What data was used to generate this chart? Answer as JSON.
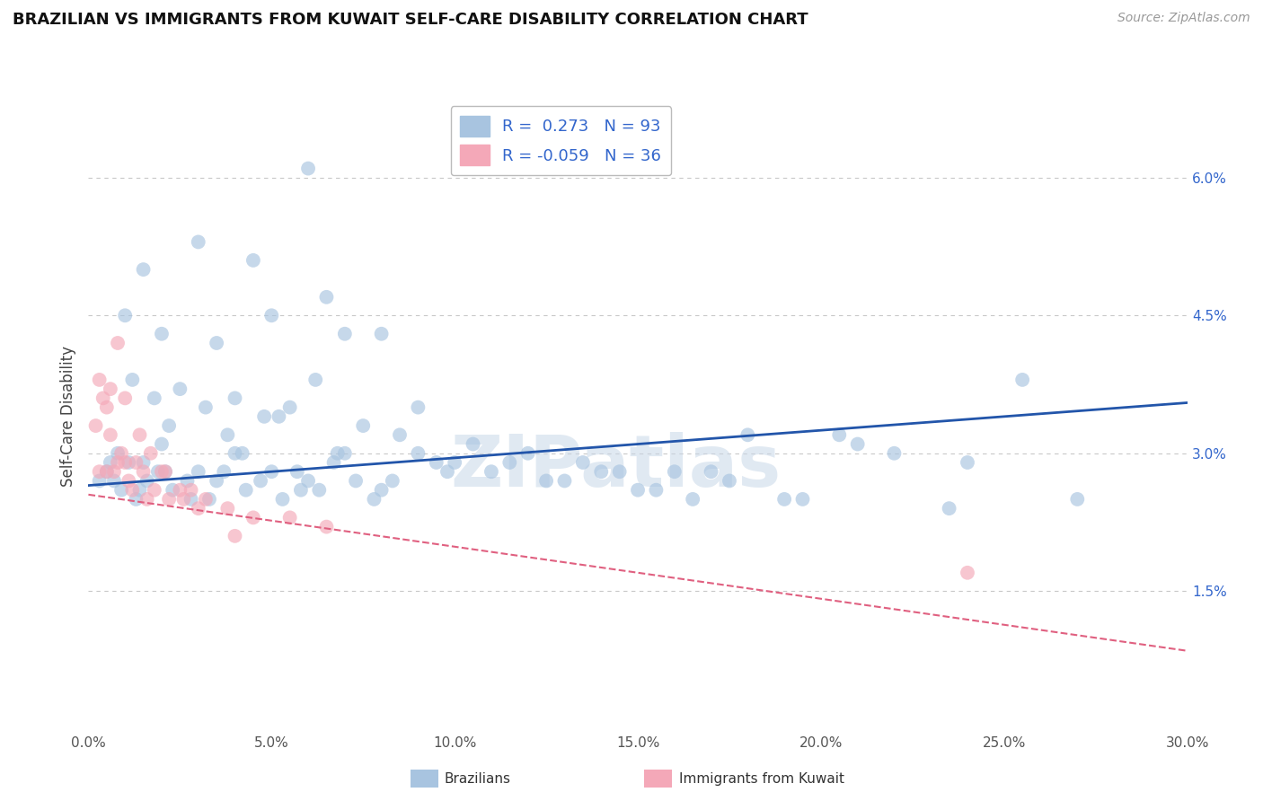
{
  "title": "BRAZILIAN VS IMMIGRANTS FROM KUWAIT SELF-CARE DISABILITY CORRELATION CHART",
  "source": "Source: ZipAtlas.com",
  "ylabel": "Self-Care Disability",
  "xlim": [
    0.0,
    30.0
  ],
  "ylim": [
    0.0,
    6.8
  ],
  "xtick_labels": [
    "0.0%",
    "5.0%",
    "10.0%",
    "15.0%",
    "20.0%",
    "25.0%",
    "30.0%"
  ],
  "xtick_values": [
    0,
    5,
    10,
    15,
    20,
    25,
    30
  ],
  "ytick_labels": [
    "1.5%",
    "3.0%",
    "4.5%",
    "6.0%"
  ],
  "ytick_values": [
    1.5,
    3.0,
    4.5,
    6.0
  ],
  "legend_r1": "R =  0.273",
  "legend_n1": "N = 93",
  "legend_r2": "R = -0.059",
  "legend_n2": "N = 36",
  "blue_color": "#A8C4E0",
  "pink_color": "#F4A8B8",
  "blue_line_color": "#2255AA",
  "pink_line_color": "#E06080",
  "watermark": "ZIPatlas",
  "background_color": "#FFFFFF",
  "grid_color": "#C8C8C8",
  "blue_line_x0": 0.0,
  "blue_line_y0": 2.65,
  "blue_line_x1": 30.0,
  "blue_line_y1": 3.55,
  "pink_line_x0": 0.0,
  "pink_line_y0": 2.55,
  "pink_line_x1": 30.0,
  "pink_line_y1": 0.85,
  "blue_scatter_x": [
    1.5,
    3.0,
    4.5,
    6.5,
    1.0,
    2.0,
    3.5,
    5.0,
    7.0,
    8.0,
    1.2,
    1.8,
    2.5,
    3.2,
    4.0,
    4.8,
    5.5,
    6.2,
    7.5,
    9.0,
    2.2,
    3.8,
    5.2,
    6.8,
    8.5,
    10.0,
    12.0,
    14.0,
    16.0,
    18.0,
    0.8,
    1.5,
    2.0,
    3.0,
    4.0,
    5.0,
    6.0,
    7.0,
    8.0,
    9.5,
    11.0,
    13.0,
    15.0,
    17.0,
    19.0,
    21.0,
    23.5,
    27.0,
    0.5,
    0.7,
    0.9,
    1.1,
    1.3,
    1.6,
    1.9,
    2.3,
    2.7,
    3.3,
    3.7,
    4.3,
    4.7,
    5.3,
    5.7,
    6.3,
    6.7,
    7.3,
    7.8,
    8.3,
    9.0,
    9.8,
    10.5,
    11.5,
    12.5,
    13.5,
    14.5,
    15.5,
    17.5,
    19.5,
    20.5,
    22.0,
    24.0,
    25.5,
    0.3,
    0.6,
    1.4,
    2.1,
    2.8,
    3.5,
    4.2,
    5.8,
    16.5,
    6.0
  ],
  "blue_scatter_y": [
    5.0,
    5.3,
    5.1,
    4.7,
    4.5,
    4.3,
    4.2,
    4.5,
    4.3,
    4.3,
    3.8,
    3.6,
    3.7,
    3.5,
    3.6,
    3.4,
    3.5,
    3.8,
    3.3,
    3.5,
    3.3,
    3.2,
    3.4,
    3.0,
    3.2,
    2.9,
    3.0,
    2.8,
    2.8,
    3.2,
    3.0,
    2.9,
    3.1,
    2.8,
    3.0,
    2.8,
    2.7,
    3.0,
    2.6,
    2.9,
    2.8,
    2.7,
    2.6,
    2.8,
    2.5,
    3.1,
    2.4,
    2.5,
    2.8,
    2.7,
    2.6,
    2.9,
    2.5,
    2.7,
    2.8,
    2.6,
    2.7,
    2.5,
    2.8,
    2.6,
    2.7,
    2.5,
    2.8,
    2.6,
    2.9,
    2.7,
    2.5,
    2.7,
    3.0,
    2.8,
    3.1,
    2.9,
    2.7,
    2.9,
    2.8,
    2.6,
    2.7,
    2.5,
    3.2,
    3.0,
    2.9,
    3.8,
    2.7,
    2.9,
    2.6,
    2.8,
    2.5,
    2.7,
    3.0,
    2.6,
    2.5,
    6.1
  ],
  "pink_scatter_x": [
    0.2,
    0.3,
    0.4,
    0.5,
    0.5,
    0.6,
    0.7,
    0.8,
    0.9,
    1.0,
    1.1,
    1.2,
    1.3,
    1.5,
    1.6,
    1.8,
    2.0,
    2.2,
    2.5,
    2.8,
    3.2,
    3.8,
    4.5,
    5.5,
    6.5,
    0.3,
    0.6,
    0.8,
    1.0,
    1.4,
    1.7,
    2.1,
    2.6,
    3.0,
    4.0,
    24.0
  ],
  "pink_scatter_y": [
    3.3,
    2.8,
    3.6,
    3.5,
    2.8,
    3.2,
    2.8,
    2.9,
    3.0,
    2.9,
    2.7,
    2.6,
    2.9,
    2.8,
    2.5,
    2.6,
    2.8,
    2.5,
    2.6,
    2.6,
    2.5,
    2.4,
    2.3,
    2.3,
    2.2,
    3.8,
    3.7,
    4.2,
    3.6,
    3.2,
    3.0,
    2.8,
    2.5,
    2.4,
    2.1,
    1.7
  ]
}
